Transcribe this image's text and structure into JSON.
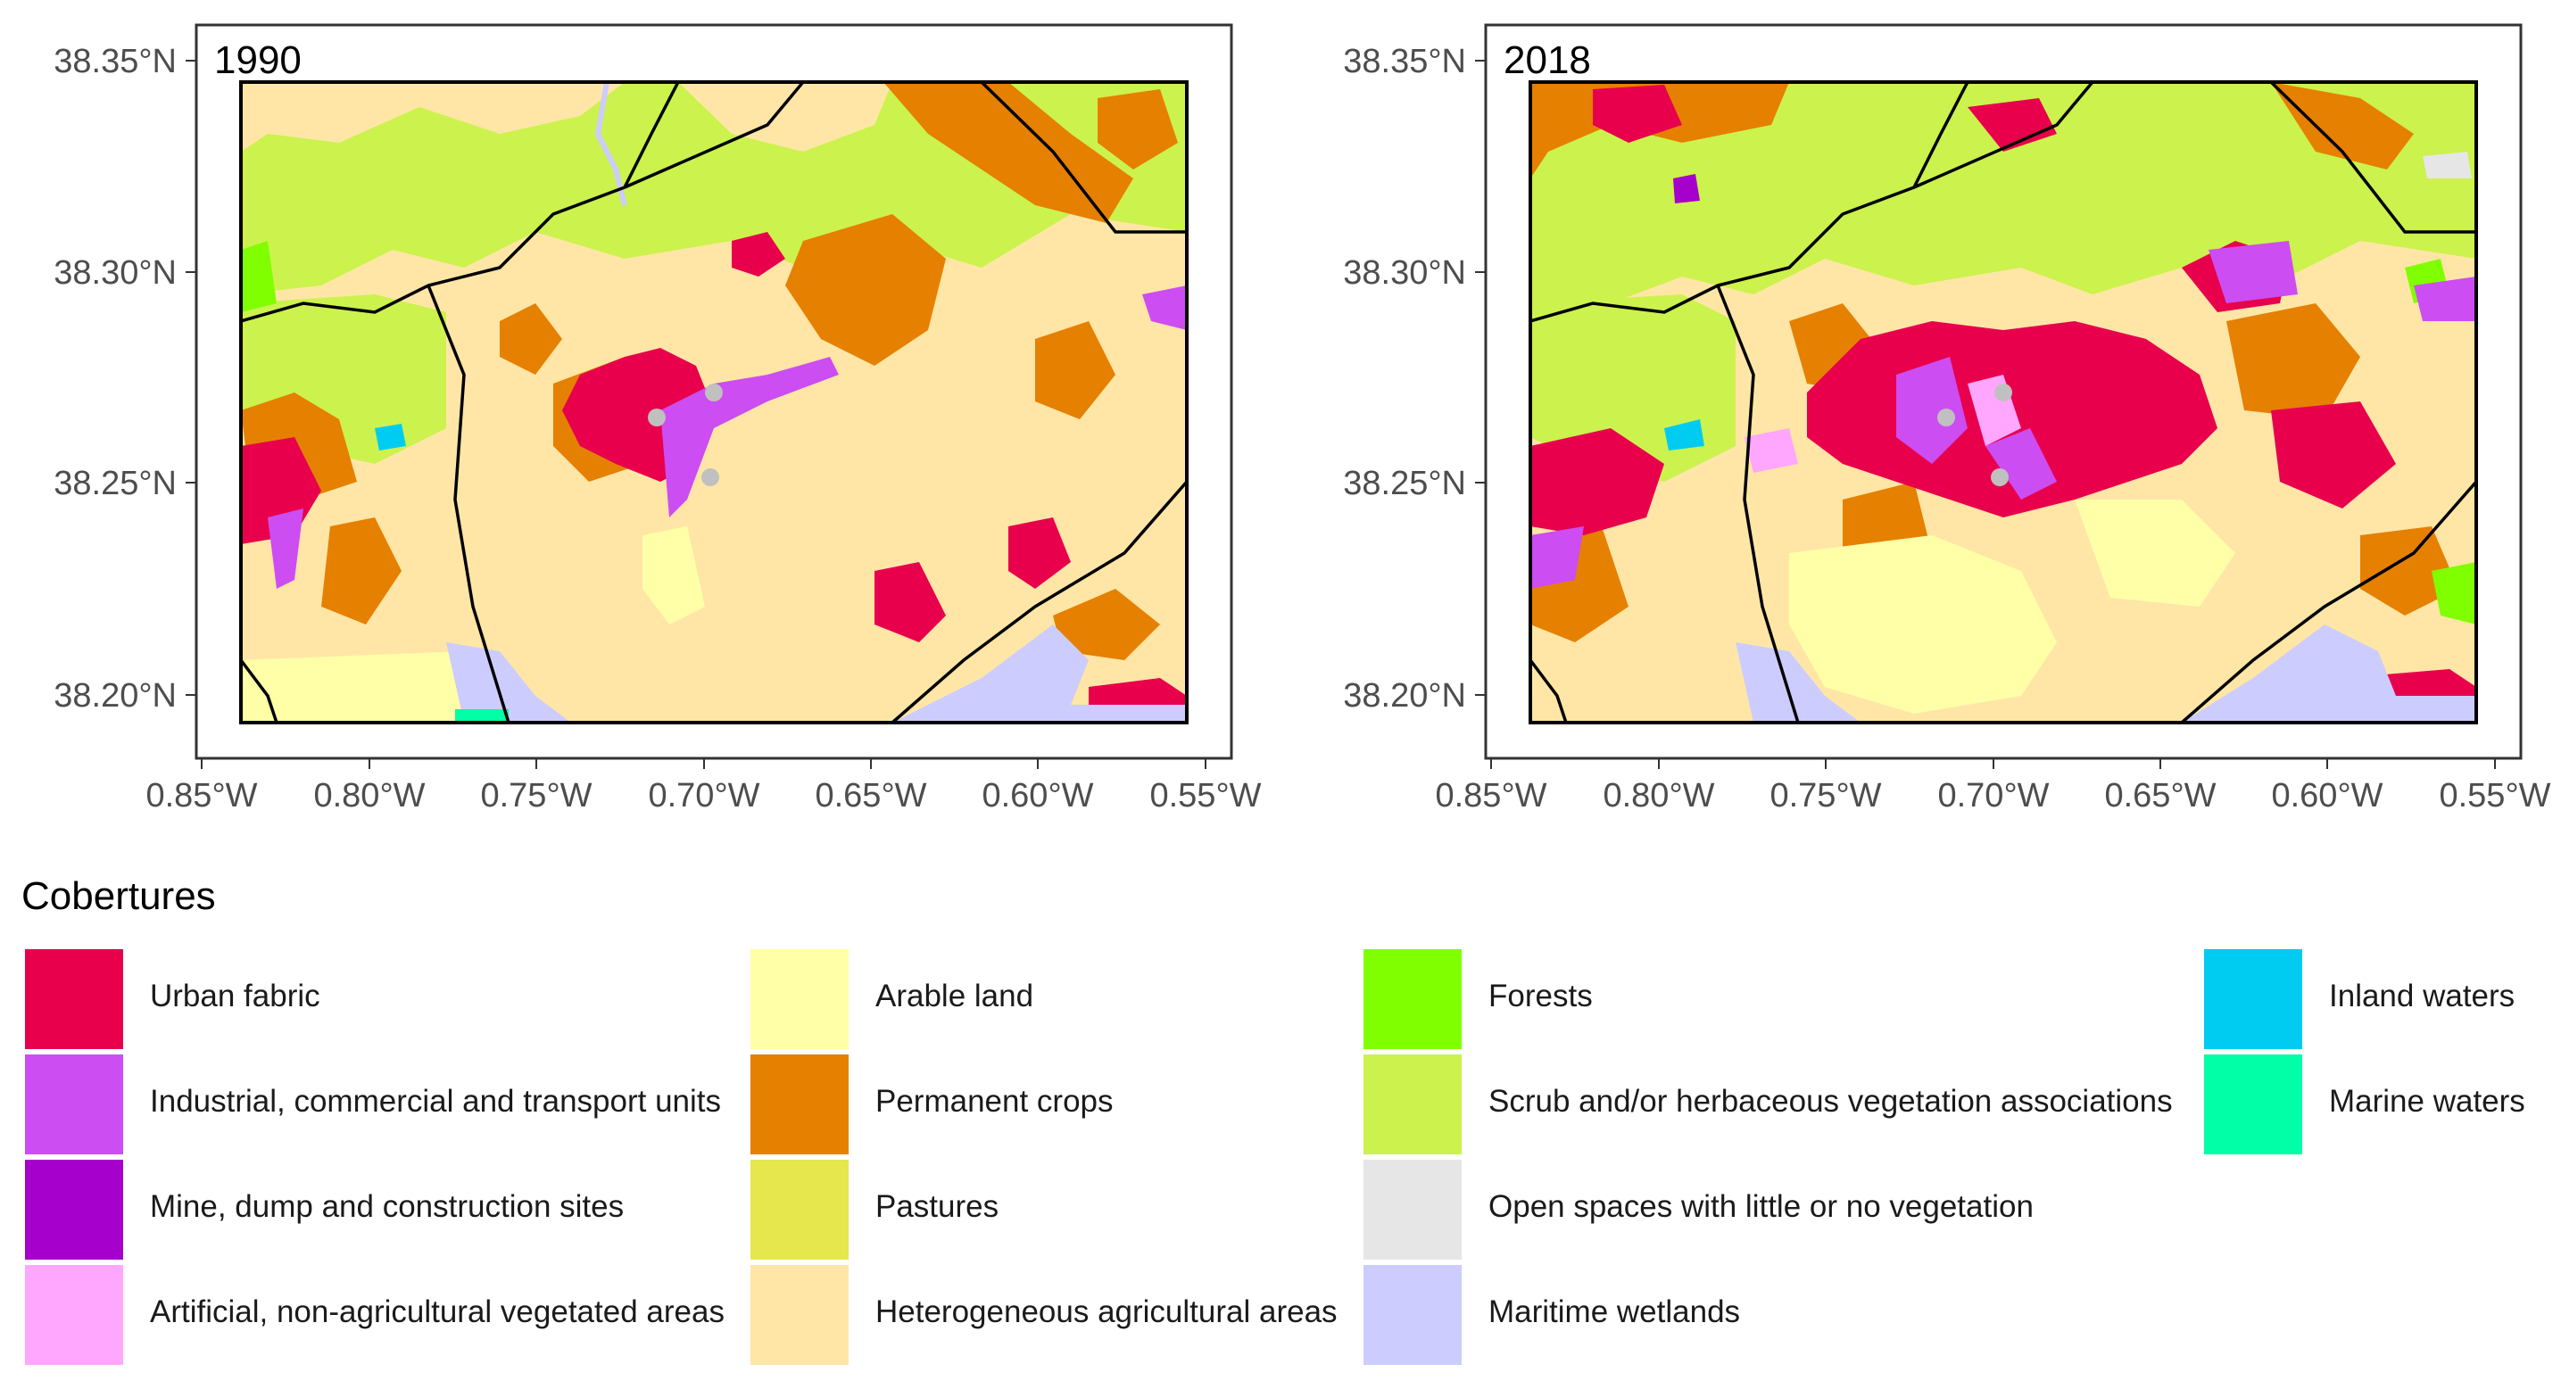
{
  "legend": {
    "title": "Cobertures",
    "classes": [
      {
        "label": "Urban fabric",
        "color": "#e8004d"
      },
      {
        "label": "Industrial, commercial and transport units",
        "color": "#cc4df2"
      },
      {
        "label": "Mine, dump and construction sites",
        "color": "#a600cc"
      },
      {
        "label": "Artificial, non-agricultural vegetated areas",
        "color": "#ffa6ff"
      },
      {
        "label": "Arable land",
        "color": "#ffffa8"
      },
      {
        "label": "Permanent crops",
        "color": "#e68000"
      },
      {
        "label": "Pastures",
        "color": "#e6e64d"
      },
      {
        "label": "Heterogeneous agricultural areas",
        "color": "#ffe6a6"
      },
      {
        "label": "Forests",
        "color": "#80ff00"
      },
      {
        "label": "Scrub and/or herbaceous vegetation associations",
        "color": "#ccf24d"
      },
      {
        "label": "Open spaces with little or no vegetation",
        "color": "#e6e6e6"
      },
      {
        "label": "Maritime wetlands",
        "color": "#ccccff"
      },
      {
        "label": "Inland waters",
        "color": "#00ccf2"
      },
      {
        "label": "Marine waters",
        "color": "#00ffa6"
      }
    ]
  },
  "maps": [
    {
      "year": "1990"
    },
    {
      "year": "2018"
    }
  ],
  "axes": {
    "x_ticks": [
      "0.85°W",
      "0.80°W",
      "0.75°W",
      "0.70°W",
      "0.65°W",
      "0.60°W",
      "0.55°W"
    ],
    "y_ticks": [
      "38.35°N",
      "38.30°N",
      "38.25°N",
      "38.20°N"
    ]
  }
}
